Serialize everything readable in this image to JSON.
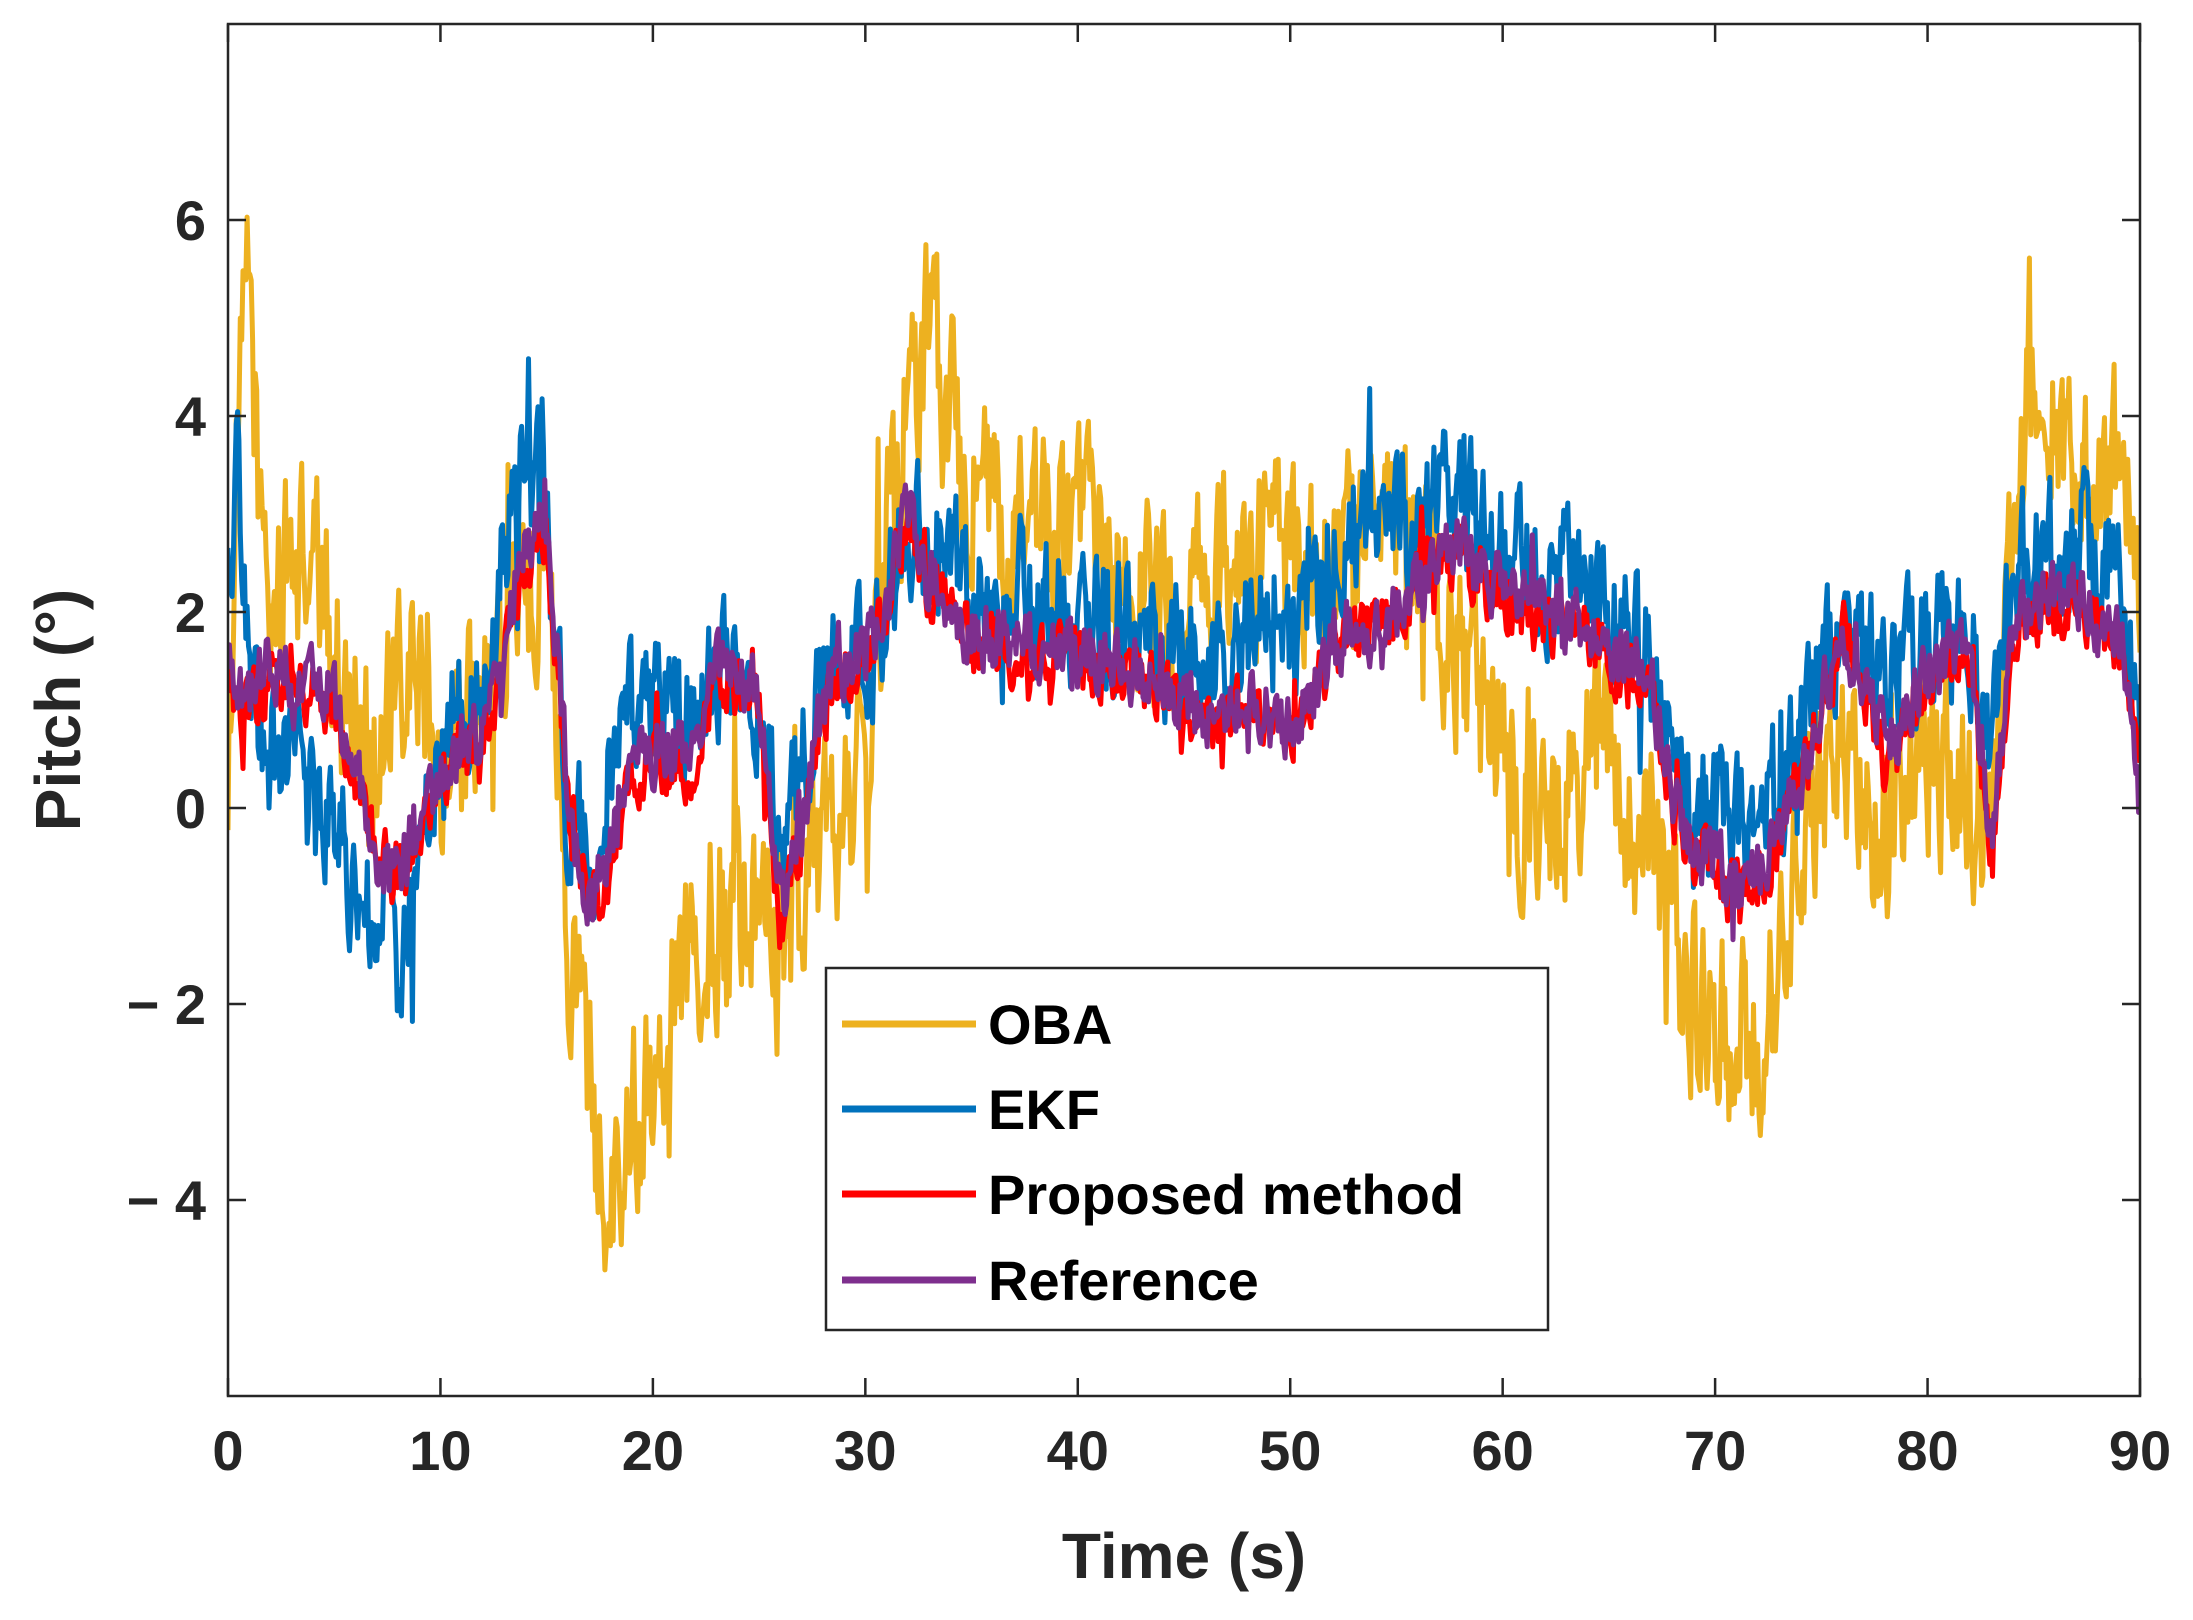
{
  "chart_data": {
    "type": "line",
    "title": "",
    "xlabel": "Time (s)",
    "ylabel": "Pitch (°)",
    "xlim": [
      0,
      90
    ],
    "ylim": [
      -6,
      8
    ],
    "xticks": [
      0,
      10,
      20,
      30,
      40,
      50,
      60,
      70,
      80,
      90
    ],
    "xtick_labels": [
      "0",
      "10",
      "20",
      "30",
      "40",
      "50",
      "60",
      "70",
      "80",
      "90"
    ],
    "yticks": [
      -4,
      -2,
      0,
      2,
      4,
      6
    ],
    "ytick_labels": [
      "− 4",
      "− 2",
      "0",
      "2",
      "4",
      "6"
    ],
    "grid": false,
    "legend_position": "bottom-center",
    "series": [
      {
        "name": "OBA",
        "color": "#EDB120",
        "noise": 0.85,
        "x": [
          0,
          0.5,
          1,
          1.5,
          2,
          3,
          4,
          5,
          6,
          7,
          8,
          9,
          10,
          11,
          12,
          13,
          14,
          15,
          16,
          17,
          18,
          19,
          20,
          21,
          22,
          23,
          24,
          25,
          26,
          27,
          28,
          29,
          30,
          31,
          32,
          33,
          34,
          35,
          36,
          37,
          38,
          39,
          40,
          41,
          42,
          43,
          44,
          45,
          46,
          47,
          48,
          49,
          50,
          51,
          52,
          53,
          54,
          55,
          56,
          57,
          58,
          59,
          60,
          61,
          62,
          63,
          64,
          65,
          66,
          67,
          68,
          69,
          70,
          71,
          72,
          73,
          74,
          75,
          76,
          77,
          78,
          79,
          80,
          81,
          82,
          83,
          84,
          85,
          86,
          87,
          88,
          89,
          90
        ],
        "y": [
          0.5,
          4.0,
          5.5,
          3.0,
          2.0,
          2.5,
          2.5,
          1.5,
          1.0,
          0.5,
          1.0,
          1.5,
          0.5,
          0.8,
          1.0,
          1.5,
          2.0,
          3.0,
          -1.0,
          -3.0,
          -3.8,
          -3.2,
          -2.5,
          -2.0,
          -1.2,
          -1.0,
          -0.8,
          -1.2,
          -1.5,
          -0.8,
          -0.5,
          0.2,
          0.5,
          2.5,
          4.0,
          5.0,
          4.0,
          3.5,
          3.0,
          2.5,
          2.8,
          2.8,
          2.7,
          2.5,
          2.4,
          2.2,
          2.0,
          2.0,
          2.3,
          2.5,
          2.6,
          2.5,
          2.4,
          2.3,
          2.5,
          2.8,
          3.0,
          3.0,
          2.5,
          2.0,
          1.5,
          1.0,
          0.5,
          0.0,
          -0.3,
          0.0,
          0.5,
          0.5,
          0.0,
          -0.5,
          -1.5,
          -2.0,
          -2.2,
          -2.5,
          -2.3,
          -1.5,
          -0.5,
          0.0,
          0.5,
          0.0,
          -0.5,
          0.0,
          0.5,
          0.5,
          0.2,
          0.0,
          3.0,
          4.5,
          4.0,
          3.5,
          3.0,
          3.5,
          2.5
        ]
      },
      {
        "name": "EKF",
        "color": "#0072BD",
        "noise": 0.6,
        "x": [
          0,
          0.5,
          1,
          1.5,
          2,
          3,
          4,
          5,
          6,
          7,
          8,
          9,
          10,
          11,
          12,
          13,
          14,
          15,
          16,
          17,
          18,
          19,
          20,
          21,
          22,
          23,
          24,
          25,
          26,
          27,
          28,
          29,
          30,
          31,
          32,
          33,
          34,
          35,
          36,
          37,
          38,
          39,
          40,
          41,
          42,
          43,
          44,
          45,
          46,
          47,
          48,
          49,
          50,
          51,
          52,
          53,
          54,
          55,
          56,
          57,
          58,
          59,
          60,
          61,
          62,
          63,
          64,
          65,
          66,
          67,
          68,
          69,
          70,
          71,
          72,
          73,
          74,
          75,
          76,
          77,
          78,
          79,
          80,
          81,
          82,
          83,
          84,
          85,
          86,
          87,
          88,
          89,
          90
        ],
        "y": [
          2.5,
          3.5,
          1.5,
          0.5,
          0.5,
          0.5,
          0.0,
          0.0,
          -0.8,
          -1.2,
          -1.5,
          -0.5,
          0.5,
          1.0,
          1.0,
          2.5,
          3.5,
          3.0,
          0.0,
          -0.5,
          0.5,
          1.0,
          1.2,
          1.0,
          0.8,
          1.5,
          1.5,
          1.2,
          -0.5,
          0.5,
          1.2,
          1.5,
          1.5,
          2.2,
          3.0,
          2.8,
          2.5,
          2.3,
          2.2,
          2.2,
          2.1,
          2.0,
          2.0,
          1.9,
          1.8,
          1.8,
          1.7,
          1.6,
          1.5,
          1.6,
          1.8,
          1.8,
          1.5,
          2.0,
          2.5,
          3.0,
          3.2,
          3.0,
          2.8,
          3.0,
          3.2,
          2.8,
          2.6,
          2.5,
          2.4,
          2.3,
          2.2,
          2.0,
          1.8,
          1.5,
          0.2,
          0.0,
          0.0,
          -0.2,
          0.0,
          0.3,
          0.5,
          1.5,
          1.8,
          1.5,
          1.2,
          1.5,
          1.8,
          1.7,
          1.7,
          0.5,
          2.5,
          2.5,
          2.6,
          2.7,
          2.6,
          2.5,
          0.8
        ]
      },
      {
        "name": "Proposed method",
        "color": "#FF0000",
        "noise": 0.28,
        "x": [
          0,
          0.5,
          1,
          1.5,
          2,
          3,
          4,
          5,
          6,
          7,
          8,
          9,
          10,
          11,
          12,
          13,
          14,
          15,
          16,
          17,
          18,
          19,
          20,
          21,
          22,
          23,
          24,
          25,
          26,
          27,
          28,
          29,
          30,
          31,
          32,
          33,
          34,
          35,
          36,
          37,
          38,
          39,
          40,
          41,
          42,
          43,
          44,
          45,
          46,
          47,
          48,
          49,
          50,
          51,
          52,
          53,
          54,
          55,
          56,
          57,
          58,
          59,
          60,
          61,
          62,
          63,
          64,
          65,
          66,
          67,
          68,
          69,
          70,
          71,
          72,
          73,
          74,
          75,
          76,
          77,
          78,
          79,
          80,
          81,
          82,
          83,
          84,
          85,
          86,
          87,
          88,
          89,
          90
        ],
        "y": [
          1.3,
          1.0,
          1.0,
          1.1,
          1.2,
          1.0,
          1.2,
          1.0,
          0.2,
          -0.5,
          -0.7,
          -0.3,
          0.2,
          0.5,
          0.6,
          1.5,
          2.5,
          2.8,
          0.0,
          -1.2,
          -0.5,
          0.3,
          0.5,
          0.4,
          0.5,
          1.3,
          1.2,
          1.0,
          -1.2,
          -0.3,
          1.0,
          1.3,
          1.5,
          2.0,
          3.0,
          2.3,
          2.0,
          1.7,
          1.6,
          1.6,
          1.5,
          1.5,
          1.5,
          1.4,
          1.4,
          1.3,
          1.2,
          1.0,
          0.8,
          0.9,
          1.0,
          0.8,
          0.7,
          1.1,
          1.5,
          1.7,
          1.8,
          2.0,
          2.3,
          2.6,
          2.5,
          2.3,
          2.2,
          2.0,
          1.9,
          1.8,
          1.7,
          1.5,
          1.4,
          1.2,
          0.0,
          -0.5,
          -0.7,
          -0.9,
          -0.8,
          -0.3,
          0.2,
          1.0,
          1.8,
          1.2,
          0.5,
          0.8,
          1.3,
          1.4,
          1.4,
          -0.5,
          1.8,
          2.0,
          2.0,
          2.1,
          1.9,
          1.7,
          0.3
        ]
      },
      {
        "name": "Reference",
        "color": "#7E2F8E",
        "noise": 0.3,
        "x": [
          0,
          0.5,
          1,
          1.5,
          2,
          3,
          4,
          5,
          6,
          7,
          8,
          9,
          10,
          11,
          12,
          13,
          14,
          15,
          16,
          17,
          18,
          19,
          20,
          21,
          22,
          23,
          24,
          25,
          26,
          27,
          28,
          29,
          30,
          31,
          32,
          33,
          34,
          35,
          36,
          37,
          38,
          39,
          40,
          41,
          42,
          43,
          44,
          45,
          46,
          47,
          48,
          49,
          50,
          51,
          52,
          53,
          54,
          55,
          56,
          57,
          58,
          59,
          60,
          61,
          62,
          63,
          64,
          65,
          66,
          67,
          68,
          69,
          70,
          71,
          72,
          73,
          74,
          75,
          76,
          77,
          78,
          79,
          80,
          81,
          82,
          83,
          84,
          85,
          86,
          87,
          88,
          89,
          90
        ],
        "y": [
          1.4,
          1.2,
          1.2,
          1.3,
          1.4,
          1.2,
          1.4,
          1.1,
          0.3,
          -0.4,
          -0.6,
          -0.2,
          0.3,
          0.6,
          0.7,
          1.6,
          2.6,
          2.9,
          0.1,
          -1.0,
          -0.3,
          0.4,
          0.6,
          0.5,
          0.6,
          1.4,
          1.3,
          1.1,
          -1.0,
          -0.2,
          1.1,
          1.4,
          1.6,
          2.1,
          3.0,
          2.4,
          2.1,
          1.8,
          1.7,
          1.7,
          1.6,
          1.6,
          1.6,
          1.5,
          1.5,
          1.4,
          1.3,
          1.1,
          0.9,
          1.0,
          1.1,
          0.9,
          0.8,
          1.2,
          1.6,
          1.8,
          1.9,
          2.1,
          2.4,
          2.6,
          2.6,
          2.4,
          2.3,
          2.1,
          2.0,
          1.9,
          1.8,
          1.6,
          1.5,
          1.3,
          0.1,
          -0.4,
          -0.6,
          -0.8,
          -0.7,
          -0.2,
          0.3,
          1.1,
          1.9,
          1.3,
          0.6,
          0.9,
          1.4,
          1.5,
          1.5,
          -0.4,
          1.9,
          2.1,
          2.1,
          2.2,
          2.0,
          1.8,
          0.4
        ]
      }
    ]
  }
}
